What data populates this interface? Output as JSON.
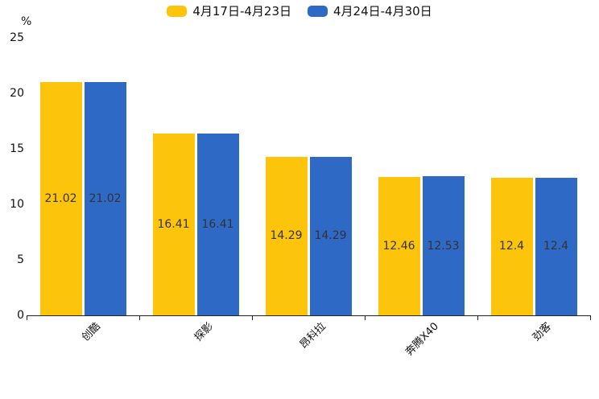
{
  "chart_data": {
    "type": "bar",
    "title": "",
    "xlabel": "",
    "ylabel": "%",
    "ylim": [
      0,
      25
    ],
    "yticks": [
      0,
      5,
      10,
      15,
      20,
      25
    ],
    "grid": false,
    "legend_position": "top-center",
    "categories": [
      "创酷",
      "探影",
      "昂科拉",
      "奔腾X40",
      "劲客"
    ],
    "series": [
      {
        "name": "4月17日-4月23日",
        "color": "#FCC40A",
        "values": [
          21.02,
          16.41,
          14.29,
          12.46,
          12.4
        ],
        "labels": [
          "21.02",
          "16.41",
          "14.29",
          "12.46",
          "12.4"
        ]
      },
      {
        "name": "4月24日-4月30日",
        "color": "#2F69C6",
        "values": [
          21.02,
          16.41,
          14.29,
          12.53,
          12.4
        ],
        "labels": [
          "21.02",
          "16.41",
          "14.29",
          "12.53",
          "12.4"
        ]
      }
    ],
    "value_label_color": "#333333",
    "axis_color": "#222222",
    "text_color": "#111111"
  }
}
